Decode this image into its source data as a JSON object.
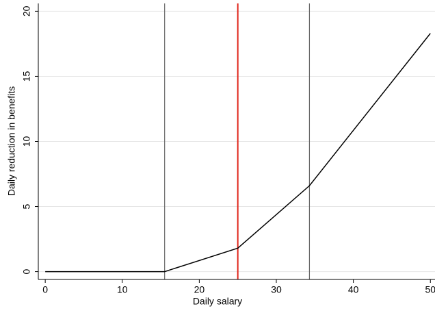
{
  "chart_data": {
    "type": "line",
    "xlabel": "Daily salary",
    "ylabel": "Daily reduction in benefits",
    "x": [
      0,
      15.5,
      25,
      34.3,
      50
    ],
    "values": [
      0,
      0,
      1.8,
      6.6,
      18.3
    ],
    "color": "#000000",
    "vlines": [
      {
        "x": 15.5,
        "color": "#666666"
      },
      {
        "x": 25,
        "color": "#e0261b"
      },
      {
        "x": 34.3,
        "color": "#666666"
      }
    ],
    "xlim": [
      -0.9,
      50.6
    ],
    "xticks": [
      0,
      10,
      20,
      30,
      40,
      50
    ],
    "ylim": [
      -0.6,
      20.6
    ],
    "yticks": [
      0,
      5,
      10,
      15,
      20
    ],
    "grid": true
  }
}
